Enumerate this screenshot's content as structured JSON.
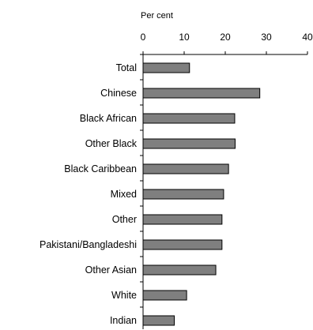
{
  "chart_data": {
    "type": "bar",
    "orientation": "horizontal",
    "axis_title": "Per cent",
    "x_ticks": [
      0,
      10,
      20,
      30,
      40
    ],
    "xlim": [
      0,
      40
    ],
    "categories": [
      "Total",
      "Chinese",
      "Black African",
      "Other Black",
      "Black Caribbean",
      "Mixed",
      "Other",
      "Pakistani/Bangladeshi",
      "Other Asian",
      "White",
      "Indian"
    ],
    "values": [
      11.3,
      28.4,
      22.3,
      22.4,
      20.8,
      19.6,
      19.2,
      19.2,
      17.7,
      10.6,
      7.6
    ],
    "bar_color": "#7f7f7f",
    "bar_outline": "#000000",
    "grid": false,
    "legend": "none"
  }
}
